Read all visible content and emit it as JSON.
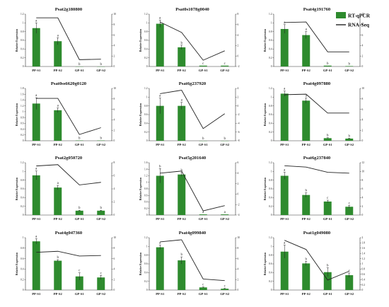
{
  "legend": {
    "bar_label": "RT-qPCR",
    "line_label": "RNA-Seq",
    "bar_color": "#2e8b2e",
    "line_color": "#222222"
  },
  "y_axis_label": "Relative Expression",
  "chart_data": [
    {
      "type": "bar",
      "title": "Psat2g180800",
      "categories": [
        "PP-S1",
        "PP-S2",
        "GP-S1",
        "GP-S2"
      ],
      "ylabel": "Relative Expression",
      "ylim": [
        0,
        1.2
      ],
      "left_ticks": [
        "0",
        "0.2",
        "0.4",
        "0.6",
        "0.8",
        "1",
        "1.2"
      ],
      "y2lim": [
        0,
        10
      ],
      "right_ticks": [
        "0",
        "2",
        "4",
        "6",
        "8",
        "10"
      ],
      "series": [
        {
          "name": "RT-qPCR",
          "values": [
            0.88,
            0.58,
            0.0,
            0.0
          ],
          "errors": [
            0.12,
            0.08,
            0,
            0
          ],
          "labels": [
            "a",
            "a",
            "b",
            "b"
          ]
        },
        {
          "name": "RNA-Seq",
          "values": [
            9.3,
            9.3,
            1.3,
            1.4
          ]
        }
      ]
    },
    {
      "type": "bar",
      "title": "Psat0s1078g0040",
      "categories": [
        "PP-S1",
        "PP-S2",
        "GP-S1",
        "GP-S2"
      ],
      "ylabel": "Relative Expression",
      "ylim": [
        0,
        1.2
      ],
      "left_ticks": [
        "0",
        "0.2",
        "0.4",
        "0.6",
        "0.8",
        "1",
        "1.2"
      ],
      "y2lim": [
        -2,
        8
      ],
      "right_ticks": [
        "-2",
        "0",
        "2",
        "4",
        "6",
        "8"
      ],
      "series": [
        {
          "name": "RT-qPCR",
          "values": [
            0.98,
            0.44,
            0.02,
            0.02
          ],
          "errors": [
            0.08,
            0.05,
            0,
            0
          ],
          "labels": [
            "a",
            "b",
            "c",
            "c"
          ]
        },
        {
          "name": "RNA-Seq",
          "values": [
            6.5,
            4.5,
            -0.8,
            1.0
          ]
        }
      ]
    },
    {
      "type": "bar",
      "title": "Psat4g191760",
      "categories": [
        "PP-S1",
        "PP-S2",
        "GP-S1",
        "GP-S2"
      ],
      "ylabel": "Relative Expression",
      "ylim": [
        0,
        1.2
      ],
      "left_ticks": [
        "0",
        "0.2",
        "0.4",
        "0.6",
        "0.8",
        "1",
        "1.2"
      ],
      "y2lim": [
        0,
        10
      ],
      "right_ticks": [
        "0",
        "2",
        "4",
        "6",
        "8",
        "10"
      ],
      "series": [
        {
          "name": "RT-qPCR",
          "values": [
            0.86,
            0.72,
            0.02,
            0.01
          ],
          "errors": [
            0.1,
            0.08,
            0,
            0
          ],
          "labels": [
            "a",
            "a",
            "b",
            "b"
          ]
        },
        {
          "name": "RNA-Seq",
          "values": [
            8.4,
            8.5,
            2.8,
            2.8
          ]
        }
      ]
    },
    {
      "type": "bar",
      "title": "Psat0ss6620g0120",
      "categories": [
        "PP-S1",
        "PP-S2",
        "GP-S1",
        "GP-S2"
      ],
      "ylabel": "Relative Expression",
      "ylim": [
        0,
        1.8
      ],
      "left_ticks": [
        "0",
        "0.2",
        "0.4",
        "0.6",
        "0.8",
        "1",
        "1.2",
        "1.4",
        "1.6",
        "1.8"
      ],
      "y2lim": [
        0,
        10
      ],
      "right_ticks": [
        "0",
        "2",
        "4",
        "6",
        "8",
        "10"
      ],
      "series": [
        {
          "name": "RT-qPCR",
          "values": [
            1.28,
            1.05,
            0.01,
            0.01
          ],
          "errors": [
            0.2,
            0.08,
            0,
            0
          ],
          "labels": [
            "a",
            "a",
            "b",
            "b"
          ]
        },
        {
          "name": "RNA-Seq",
          "values": [
            8.1,
            8.1,
            1.2,
            2.5
          ]
        }
      ]
    },
    {
      "type": "bar",
      "title": "Psat6g237920",
      "categories": [
        "PP-S1",
        "PP-S2",
        "GP-S1",
        "GP-S2"
      ],
      "ylabel": "Relative Expression",
      "ylim": [
        0,
        1.2
      ],
      "left_ticks": [
        "0",
        "0.2",
        "0.4",
        "0.6",
        "0.8",
        "1",
        "1.2"
      ],
      "y2lim": [
        -8,
        4
      ],
      "right_ticks": [
        "-8",
        "-6",
        "-4",
        "-2",
        "0",
        "2",
        "4"
      ],
      "series": [
        {
          "name": "RT-qPCR",
          "values": [
            0.8,
            0.8,
            0.0,
            0.0
          ],
          "errors": [
            0.18,
            0.08,
            0,
            0
          ],
          "labels": [
            "a",
            "a",
            "b",
            "b"
          ]
        },
        {
          "name": "RNA-Seq",
          "values": [
            2.8,
            3.6,
            -5.2,
            -1.8
          ]
        }
      ]
    },
    {
      "type": "bar",
      "title": "Psat4g097880",
      "categories": [
        "PP-S1",
        "PP-S2",
        "GP-S1",
        "GP-S2"
      ],
      "ylabel": "Relative Expression",
      "ylim": [
        0,
        1.2
      ],
      "left_ticks": [
        "0",
        "0.2",
        "0.4",
        "0.6",
        "0.8",
        "1",
        "1.2"
      ],
      "y2lim": [
        0,
        10
      ],
      "right_ticks": [
        "0",
        "2",
        "4",
        "6",
        "8",
        "10"
      ],
      "series": [
        {
          "name": "RT-qPCR",
          "values": [
            1.08,
            0.92,
            0.06,
            0.05
          ],
          "errors": [
            0.06,
            0.06,
            0.01,
            0.01
          ],
          "labels": [
            "a",
            "a",
            "b",
            "b"
          ]
        },
        {
          "name": "RNA-Seq",
          "values": [
            8.8,
            8.9,
            5.3,
            5.3
          ]
        }
      ]
    },
    {
      "type": "bar",
      "title": "Psat2g050720",
      "categories": [
        "PP-S1",
        "PP-S2",
        "GP-S1",
        "GP-S2"
      ],
      "ylabel": "Relative Expression",
      "ylim": [
        0,
        1.2
      ],
      "left_ticks": [
        "0",
        "0.2",
        "0.4",
        "0.6",
        "0.8",
        "1",
        "1.2"
      ],
      "y2lim": [
        0,
        8
      ],
      "right_ticks": [
        "0",
        "2",
        "4",
        "6",
        "8"
      ],
      "series": [
        {
          "name": "RT-qPCR",
          "values": [
            0.91,
            0.63,
            0.1,
            0.1
          ],
          "errors": [
            0.1,
            0.05,
            0.01,
            0.01
          ],
          "labels": [
            "a",
            "a",
            "b",
            "b"
          ]
        },
        {
          "name": "RNA-Seq",
          "values": [
            7.5,
            7.7,
            4.6,
            5.0
          ]
        }
      ]
    },
    {
      "type": "bar",
      "title": "Psat5g201640",
      "categories": [
        "PP-S1",
        "PP-S2",
        "GP-S1",
        "GP-S2"
      ],
      "ylabel": "Relative Expression",
      "ylim": [
        0,
        1.6
      ],
      "left_ticks": [
        "0",
        "0.2",
        "0.4",
        "0.6",
        "0.8",
        "1",
        "1.2",
        "1.4",
        "1.6"
      ],
      "y2lim": [
        -4,
        6
      ],
      "right_ticks": [
        "-4",
        "-2",
        "0",
        "2",
        "4",
        "6"
      ],
      "series": [
        {
          "name": "RT-qPCR",
          "values": [
            1.2,
            1.24,
            0.02,
            0.02
          ],
          "errors": [
            0.22,
            0.06,
            0,
            0
          ],
          "labels": [
            "b",
            "b",
            "a",
            "a"
          ]
        },
        {
          "name": "RNA-Seq",
          "values": [
            4.0,
            4.4,
            -3.2,
            -2.2
          ]
        }
      ]
    },
    {
      "type": "bar",
      "title": "Psat6g237840",
      "categories": [
        "PP-S1",
        "PP-S2",
        "GP-S1",
        "GP-S2"
      ],
      "ylabel": "Relative Expression",
      "ylim": [
        0,
        1.2
      ],
      "left_ticks": [
        "0",
        "0.2",
        "0.4",
        "0.6",
        "0.8",
        "1",
        "1.2"
      ],
      "y2lim": [
        0,
        12
      ],
      "right_ticks": [
        "0",
        "2",
        "4",
        "6",
        "8",
        "10",
        "12"
      ],
      "series": [
        {
          "name": "RT-qPCR",
          "values": [
            0.9,
            0.46,
            0.31,
            0.19
          ],
          "errors": [
            0.08,
            0.05,
            0.03,
            0.03
          ],
          "labels": [
            "a",
            "b",
            "c",
            "c"
          ]
        },
        {
          "name": "RNA-Seq",
          "values": [
            11.3,
            11.0,
            9.8,
            9.6
          ]
        }
      ]
    },
    {
      "type": "bar",
      "title": "Psat4g047360",
      "categories": [
        "PP-S1",
        "PP-S2",
        "GP-S1",
        "GP-S2"
      ],
      "ylabel": "Relative Expression",
      "ylim": [
        0,
        1
      ],
      "left_ticks": [
        "0",
        "0.2",
        "0.4",
        "0.6",
        "0.8",
        "1"
      ],
      "y2lim": [
        0,
        10
      ],
      "right_ticks": [
        "0",
        "2",
        "4",
        "6",
        "8",
        "10"
      ],
      "series": [
        {
          "name": "RT-qPCR",
          "values": [
            0.93,
            0.56,
            0.26,
            0.24
          ],
          "errors": [
            0.05,
            0.02,
            0.07,
            0.04
          ],
          "labels": [
            "a",
            "b",
            "c",
            "c"
          ]
        },
        {
          "name": "RNA-Seq",
          "values": [
            7.2,
            7.4,
            6.5,
            6.6
          ]
        }
      ]
    },
    {
      "type": "bar",
      "title": "Psat4g099840",
      "categories": [
        "PP-S1",
        "PP-S2",
        "GP-S1",
        "GP-S2"
      ],
      "ylabel": "Relative Expression",
      "ylim": [
        0,
        1.2
      ],
      "left_ticks": [
        "0",
        "0.2",
        "0.4",
        "0.6",
        "0.8",
        "1",
        "1.2"
      ],
      "y2lim": [
        0,
        10
      ],
      "right_ticks": [
        "0",
        "2",
        "4",
        "6",
        "8",
        "10"
      ],
      "series": [
        {
          "name": "RT-qPCR",
          "values": [
            0.98,
            0.68,
            0.06,
            0.03
          ],
          "errors": [
            0.05,
            0.08,
            0.01,
            0.01
          ],
          "labels": [
            "a",
            "b",
            "c",
            "c"
          ]
        },
        {
          "name": "RNA-Seq",
          "values": [
            9.2,
            9.6,
            2.1,
            1.8
          ]
        }
      ]
    },
    {
      "type": "bar",
      "title": "Psat1g049080",
      "categories": [
        "PP-S1",
        "PP-S2",
        "GP-S1",
        "GP-S2"
      ],
      "ylabel": "Relative Expression",
      "ylim": [
        0,
        1.2
      ],
      "left_ticks": [
        "0",
        "0.2",
        "0.4",
        "0.6",
        "0.8",
        "1",
        "1.2"
      ],
      "y2lim": [
        0,
        2
      ],
      "right_ticks": [
        "0",
        "0.2",
        "0.4",
        "0.6",
        "0.8",
        "1",
        "1.2",
        "1.4",
        "1.6",
        "1.8",
        "2"
      ],
      "series": [
        {
          "name": "RT-qPCR",
          "values": [
            0.88,
            0.61,
            0.41,
            0.34
          ],
          "errors": [
            0.15,
            0.05,
            0.1,
            0.05
          ],
          "labels": [
            "a",
            "b",
            "b",
            "c"
          ]
        },
        {
          "name": "RNA-Seq",
          "values": [
            1.9,
            1.55,
            0.38,
            0.72
          ]
        }
      ]
    }
  ]
}
